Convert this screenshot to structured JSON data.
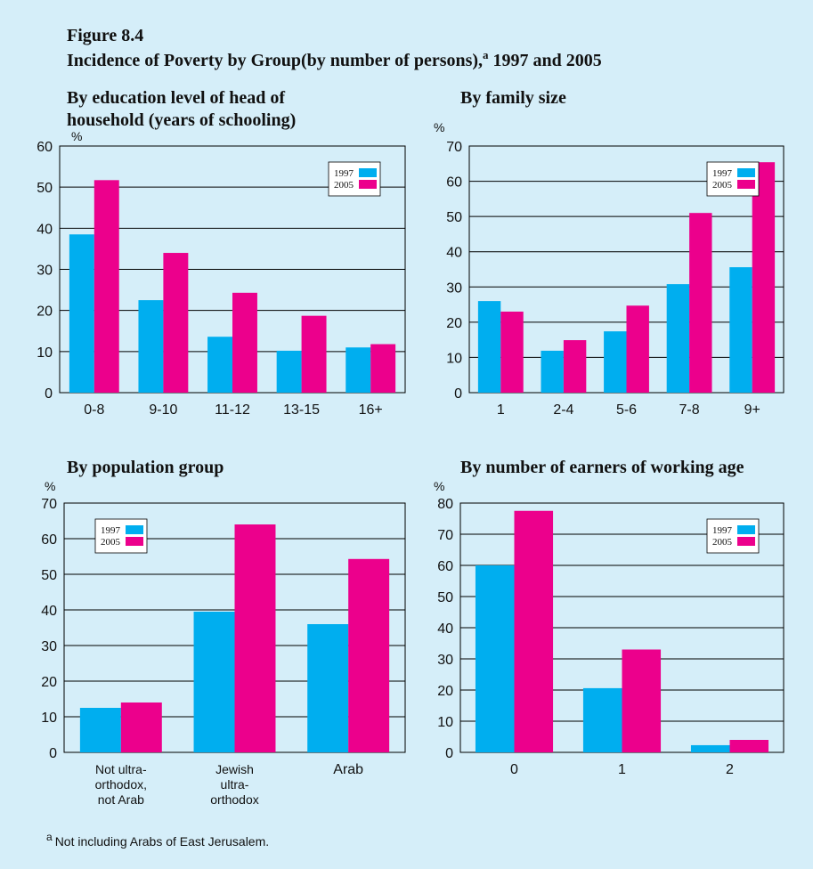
{
  "header": {
    "figure_label": "Figure 8.4",
    "title": "Incidence of Poverty by Group(by number of persons),",
    "title_note_marker": "a",
    "title_end": "1997 and 2005"
  },
  "footnote": {
    "marker": "a",
    "text": "Not including Arabs of East Jerusalem."
  },
  "chart_data": [
    {
      "type": "bar",
      "title": [
        "By education level of head of",
        "household (years of schooling)"
      ],
      "ylabel": "%",
      "categories": [
        [
          "0-8"
        ],
        [
          "9-10"
        ],
        [
          "11-12"
        ],
        [
          "13-15"
        ],
        [
          "16+"
        ]
      ],
      "series": [
        {
          "name": "1997",
          "color": "#00aeef",
          "values": [
            38.5,
            22.5,
            13.6,
            10.2,
            11
          ]
        },
        {
          "name": "2005",
          "color": "#ec008c",
          "values": [
            51.7,
            34,
            24.3,
            18.7,
            11.8
          ]
        }
      ],
      "ylim": [
        0,
        60
      ],
      "yticks": [
        0,
        10,
        20,
        30,
        40,
        50,
        60
      ],
      "grid": true,
      "legend": "upper right"
    },
    {
      "type": "bar",
      "title": [
        "By family size"
      ],
      "ylabel": "%",
      "categories": [
        [
          "1"
        ],
        [
          "2-4"
        ],
        [
          "5-6"
        ],
        [
          "7-8"
        ],
        [
          "9+"
        ]
      ],
      "series": [
        {
          "name": "1997",
          "color": "#00aeef",
          "values": [
            26,
            11.9,
            17.4,
            30.8,
            35.6
          ]
        },
        {
          "name": "2005",
          "color": "#ec008c",
          "values": [
            23,
            14.9,
            24.7,
            51,
            65.4
          ]
        }
      ],
      "ylim": [
        0,
        70
      ],
      "yticks": [
        0,
        10,
        20,
        30,
        40,
        50,
        60,
        70
      ],
      "grid": true,
      "legend": "upper right"
    },
    {
      "type": "bar",
      "title": [
        "By population group"
      ],
      "ylabel": "%",
      "categories": [
        [
          "Not ultra-",
          "orthodox,",
          "not Arab"
        ],
        [
          "Jewish",
          "ultra-",
          "orthodox"
        ],
        [
          "Arab"
        ]
      ],
      "series": [
        {
          "name": "1997",
          "color": "#00aeef",
          "values": [
            12.5,
            39.5,
            36
          ]
        },
        {
          "name": "2005",
          "color": "#ec008c",
          "values": [
            14,
            64,
            54.3
          ]
        }
      ],
      "ylim": [
        0,
        70
      ],
      "yticks": [
        0,
        10,
        20,
        30,
        40,
        50,
        60,
        70
      ],
      "grid": true,
      "legend": "upper left"
    },
    {
      "type": "bar",
      "title": [
        "By number of earners of working age"
      ],
      "ylabel": "%",
      "categories": [
        [
          "0"
        ],
        [
          "1"
        ],
        [
          "2"
        ]
      ],
      "series": [
        {
          "name": "1997",
          "color": "#00aeef",
          "values": [
            60,
            20.6,
            2.3
          ]
        },
        {
          "name": "2005",
          "color": "#ec008c",
          "values": [
            77.5,
            33,
            4
          ]
        }
      ],
      "ylim": [
        0,
        80
      ],
      "yticks": [
        0,
        10,
        20,
        30,
        40,
        50,
        60,
        70,
        80
      ],
      "grid": true,
      "legend": "upper right"
    }
  ]
}
